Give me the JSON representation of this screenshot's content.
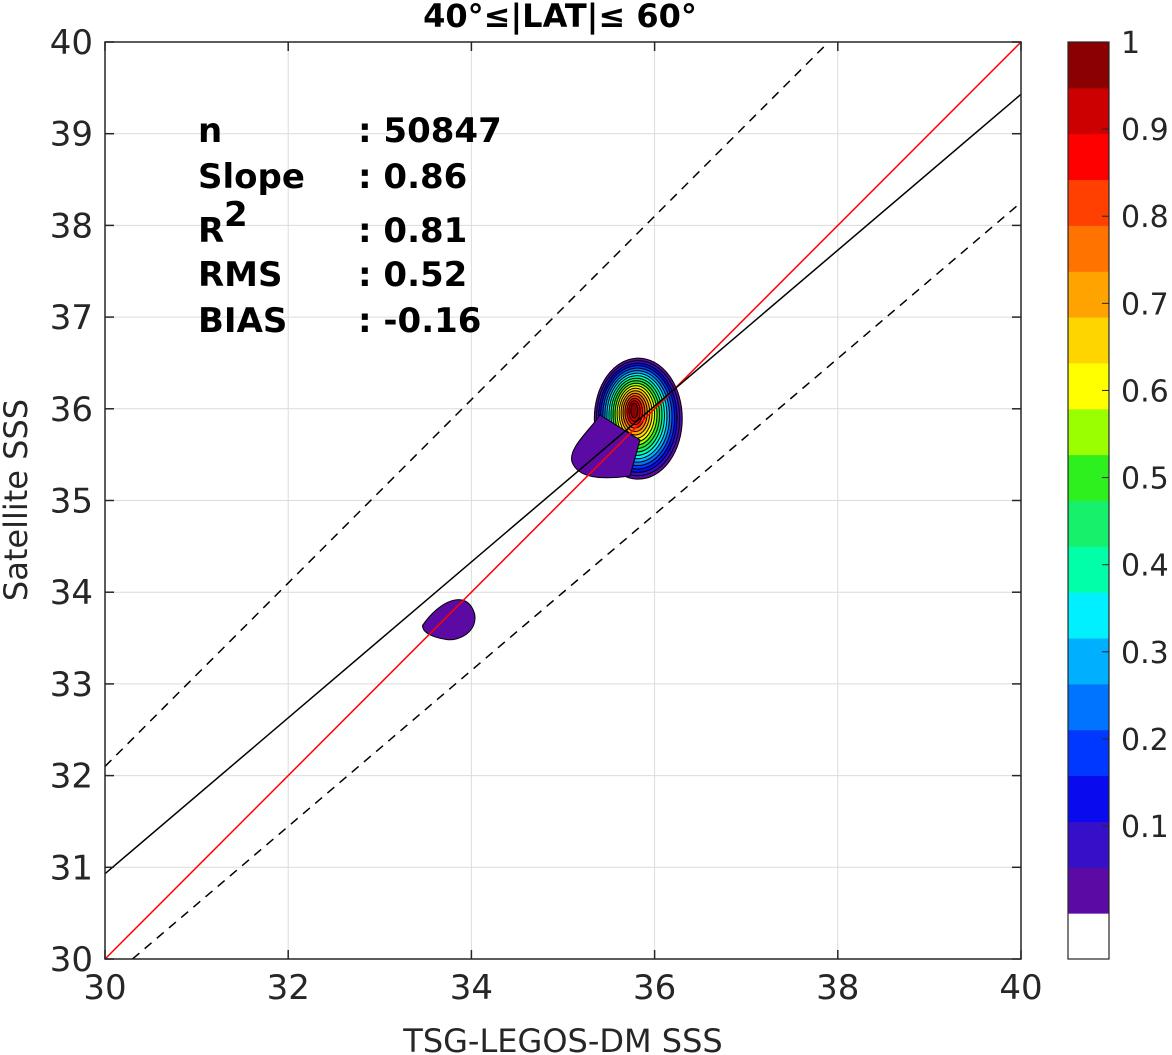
{
  "chart_data": {
    "type": "contour",
    "title_prefix": "40°≤|LAT|≤ 60°",
    "xlabel": "TSG-LEGOS-DM SSS",
    "ylabel": "Satellite SSS",
    "xlim": [
      30,
      40
    ],
    "ylim": [
      30,
      40
    ],
    "xticks": [
      30,
      32,
      34,
      36,
      38,
      40
    ],
    "yticks": [
      30,
      31,
      32,
      33,
      34,
      35,
      36,
      37,
      38,
      39,
      40
    ],
    "grid": true,
    "stats": [
      {
        "name": "n",
        "sep": ": ",
        "value": "50847"
      },
      {
        "name": "Slope",
        "sep": ": ",
        "value": "0.86"
      },
      {
        "name": "R",
        "sup": "2",
        "sep": ": ",
        "value": "0.81"
      },
      {
        "name": "RMS",
        "sep": ": ",
        "value": "0.52"
      },
      {
        "name": "BIAS",
        "sep": ": ",
        "value": "-0.16"
      }
    ],
    "lines": [
      {
        "role": "one-to-one",
        "color": "#ff0000",
        "style": "solid",
        "points": [
          [
            30,
            30
          ],
          [
            40,
            40
          ]
        ]
      },
      {
        "role": "regression",
        "color": "#000000",
        "style": "solid",
        "points": [
          [
            30,
            30.93
          ],
          [
            40,
            39.43
          ]
        ]
      },
      {
        "role": "upper-bound",
        "color": "#000000",
        "style": "dashed",
        "points": [
          [
            30,
            32.1
          ],
          [
            40,
            42.1
          ]
        ]
      },
      {
        "role": "lower-bound",
        "color": "#000000",
        "style": "dashed",
        "points": [
          [
            30.3,
            30
          ],
          [
            40,
            38.25
          ]
        ]
      }
    ],
    "density_peaks": [
      {
        "center": [
          35.8,
          35.98
        ],
        "peak": 1.0
      },
      {
        "center": [
          33.75,
          33.68
        ],
        "peak": 0.1
      }
    ],
    "colorbar": {
      "ticks": [
        0.1,
        0.2,
        0.3,
        0.4,
        0.5,
        0.6,
        0.7,
        0.8,
        0.9,
        1
      ],
      "colors": [
        "#ffffff",
        "#5b0aa3",
        "#3510c8",
        "#0a0aee",
        "#0038ff",
        "#0073ff",
        "#00b0ff",
        "#00f0ff",
        "#00ffa8",
        "#17f06a",
        "#2ef01e",
        "#9aff00",
        "#ffff00",
        "#ffd500",
        "#ffa300",
        "#ff7300",
        "#ff4000",
        "#ff0000",
        "#cc0000",
        "#8b0000"
      ]
    }
  }
}
